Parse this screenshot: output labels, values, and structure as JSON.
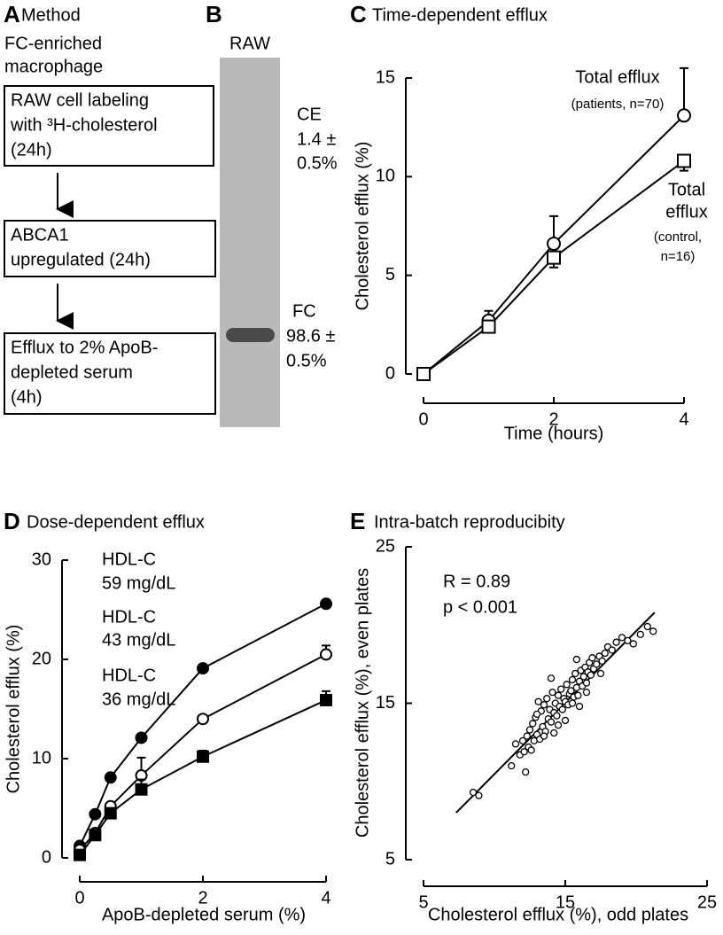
{
  "method": {
    "label": "A",
    "title": "Method",
    "subtitle_lines": [
      "FC-enriched",
      "macrophage"
    ],
    "steps": [
      [
        "RAW cell labeling",
        "with ³H-cholesterol",
        "(24h)"
      ],
      [
        "ABCA1",
        "upregulated (24h)"
      ],
      [
        "Efflux to 2% ApoB-",
        "depleted serum",
        "(4h)"
      ]
    ]
  },
  "gel": {
    "label": "B",
    "lane": "RAW",
    "ce_lines": [
      "CE",
      "1.4 ±",
      "0.5%"
    ],
    "fc_lines": [
      "FC",
      "98.6 ±",
      "0.5%"
    ]
  },
  "chart_data": [
    {
      "type": "line",
      "label": "C",
      "title": "Time-dependent efflux",
      "xlabel": "Time (hours)",
      "ylabel": "Cholesterol efflux (%)",
      "x": [
        0,
        1,
        2,
        4
      ],
      "xlim": [
        0,
        4
      ],
      "xticks": [
        0,
        2,
        4
      ],
      "ylim": [
        0,
        15
      ],
      "yticks": [
        0,
        5,
        10,
        15
      ],
      "series": [
        {
          "color": "#000",
          "marker": "circle",
          "fill": "#fff",
          "values": [
            0,
            2.7,
            6.6,
            13.1
          ],
          "errors": [
            0,
            0.5,
            1.4,
            2.4
          ],
          "error_direction": "up"
        },
        {
          "color": "#000",
          "marker": "square",
          "fill": "#fff",
          "values": [
            0,
            2.4,
            5.9,
            10.8
          ],
          "errors": [
            0,
            0.3,
            0.5,
            0.5
          ],
          "error_direction": "down"
        }
      ],
      "annotations": [
        "Total efflux",
        "(patients, n=70)",
        "Total",
        "efflux",
        "(control,",
        "n=16)"
      ]
    },
    {
      "type": "line",
      "label": "D",
      "title": "Dose-dependent efflux",
      "xlabel": "ApoB-depleted serum (%)",
      "ylabel": "Cholesterol efflux (%)",
      "x": [
        0,
        0.25,
        0.5,
        1,
        2,
        4
      ],
      "xlim": [
        0,
        4
      ],
      "xticks": [
        0,
        2,
        4
      ],
      "ylim": [
        0,
        30
      ],
      "yticks": [
        0,
        10,
        20,
        30
      ],
      "series": [
        {
          "color": "#000",
          "marker": "circle",
          "fill": "#000",
          "values": [
            1.2,
            4.4,
            8.1,
            12.1,
            19.1,
            25.6
          ],
          "errors": [
            0,
            0,
            0,
            0,
            0,
            0
          ],
          "error_direction": "up"
        },
        {
          "color": "#000",
          "marker": "circle",
          "fill": "#fff",
          "values": [
            0.8,
            2.5,
            5.2,
            8.3,
            14,
            20.5
          ],
          "errors": [
            0,
            0.3,
            0.3,
            1.8,
            0.3,
            0.9
          ],
          "error_direction": "up"
        },
        {
          "color": "#000",
          "marker": "square",
          "fill": "#000",
          "values": [
            0.3,
            2.3,
            4.5,
            6.9,
            10.2,
            15.9
          ],
          "errors": [
            0,
            0.2,
            0.3,
            1.0,
            0.6,
            0.9
          ],
          "error_direction": "up"
        }
      ],
      "annotations": [
        "HDL-C",
        "59 mg/dL",
        "HDL-C",
        "43 mg/dL",
        "HDL-C",
        "36 mg/dL"
      ]
    },
    {
      "type": "scatter",
      "label": "E",
      "title": "Intra-batch reproducibity",
      "xlabel": "Cholesterol efflux (%), odd plates",
      "ylabel": "Cholesterol efflux (%), even plates",
      "xlim": [
        5,
        25
      ],
      "xticks": [
        5,
        15,
        25
      ],
      "ylim": [
        5,
        25
      ],
      "yticks": [
        5,
        15,
        25
      ],
      "color": "#000",
      "x": [
        8.5,
        8.9,
        11.2,
        11.5,
        11.8,
        12.0,
        12.1,
        12.3,
        12.4,
        12.5,
        12.6,
        12.7,
        12.8,
        12.9,
        13.0,
        13.1,
        13.2,
        13.3,
        13.4,
        13.5,
        13.6,
        13.7,
        13.8,
        13.9,
        14.0,
        14.1,
        14.2,
        14.3,
        14.4,
        14.5,
        14.6,
        14.7,
        14.8,
        14.9,
        15.0,
        15.1,
        15.2,
        15.3,
        15.4,
        15.5,
        15.6,
        15.7,
        15.8,
        15.9,
        16.0,
        16.1,
        16.2,
        16.3,
        16.4,
        16.5,
        16.6,
        16.7,
        16.8,
        16.9,
        17.0,
        17.2,
        17.4,
        17.6,
        17.8,
        18.0,
        18.3,
        18.6,
        19.0,
        19.4,
        19.8,
        20.3,
        20.8,
        21.2,
        13.0,
        13.5,
        14.0,
        14.5,
        15.0,
        15.5,
        16.0,
        16.5,
        12.2,
        17.5,
        14.2,
        15.8
      ],
      "y": [
        9.3,
        9.1,
        11.0,
        12.4,
        11.7,
        12.6,
        11.9,
        12.9,
        12.2,
        13.3,
        12.0,
        13.7,
        12.6,
        14.1,
        13.0,
        15.1,
        12.7,
        14.5,
        13.5,
        14.9,
        13.2,
        15.3,
        14.0,
        14.6,
        13.8,
        15.7,
        14.4,
        15.0,
        14.2,
        15.5,
        14.8,
        15.9,
        14.6,
        15.3,
        15.1,
        16.2,
        14.9,
        15.6,
        15.8,
        16.5,
        15.4,
        16.9,
        16.0,
        15.5,
        16.4,
        17.1,
        16.1,
        16.7,
        17.3,
        16.3,
        17.0,
        17.6,
        16.8,
        17.9,
        17.2,
        17.5,
        18.0,
        17.7,
        18.2,
        18.6,
        18.4,
        18.9,
        19.2,
        19.0,
        18.8,
        19.4,
        19.9,
        19.6,
        14.3,
        12.9,
        16.6,
        13.6,
        13.9,
        15.0,
        14.8,
        15.7,
        10.6,
        16.9,
        13.1,
        17.8
      ],
      "fit_line": {
        "x": [
          7.3,
          21.3
        ],
        "y": [
          8.0,
          20.8
        ]
      },
      "annotations": [
        "R = 0.89",
        "p < 0.001"
      ]
    }
  ]
}
